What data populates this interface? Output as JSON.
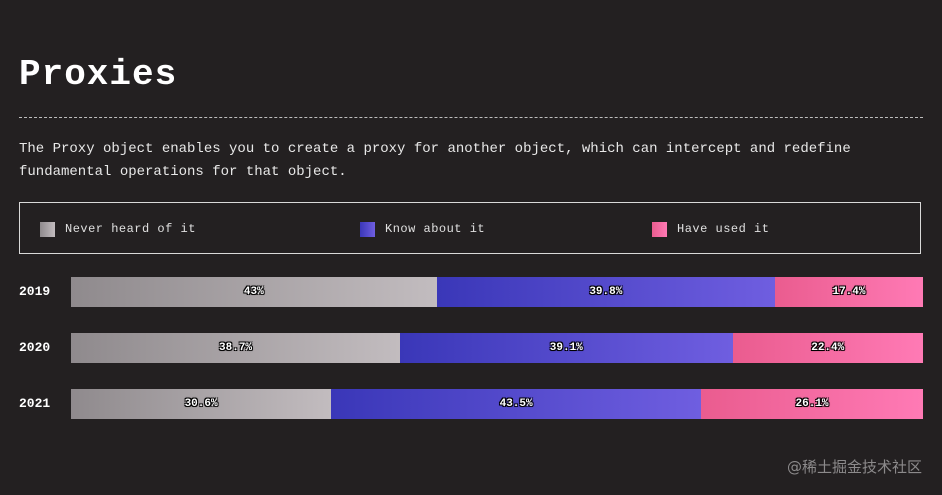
{
  "title": "Proxies",
  "description": "The Proxy object enables you to create a proxy for another object, which can intercept and redefine\nfundamental operations for that object.",
  "colors": {
    "never": [
      "#8f8a8d",
      "#c2bcbf"
    ],
    "know": [
      "#3a37b8",
      "#6f5ee0"
    ],
    "used": [
      "#ea5c8f",
      "#ff7ab5"
    ]
  },
  "chart_data": {
    "type": "bar",
    "stacked": true,
    "orientation": "horizontal",
    "unit": "%",
    "categories": [
      "2019",
      "2020",
      "2021"
    ],
    "series": [
      {
        "name": "Never heard of it",
        "key": "never",
        "values": [
          43,
          38.7,
          30.6
        ]
      },
      {
        "name": "Know about it",
        "key": "know",
        "values": [
          39.8,
          39.1,
          43.5
        ]
      },
      {
        "name": "Have used it",
        "key": "used",
        "values": [
          17.4,
          22.4,
          26.1
        ]
      }
    ],
    "legend": "top"
  },
  "watermark": "@稀土掘金技术社区"
}
